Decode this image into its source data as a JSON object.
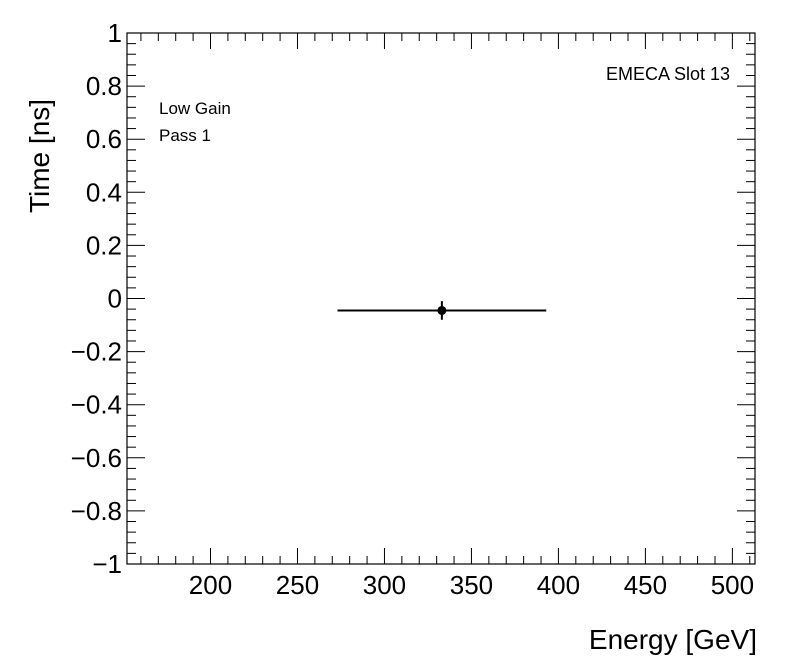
{
  "chart_data": {
    "type": "scatter",
    "xlabel": "Energy [GeV]",
    "ylabel": "Time [ns]",
    "xlim": [
      152,
      513
    ],
    "ylim": [
      -1,
      1
    ],
    "x_ticks": [
      200,
      250,
      300,
      350,
      400,
      450,
      500
    ],
    "y_ticks": [
      -1,
      -0.8,
      -0.6,
      -0.4,
      -0.2,
      0,
      0.2,
      0.4,
      0.6,
      0.8,
      1
    ],
    "x_tick_labels": [
      "200",
      "250",
      "300",
      "350",
      "400",
      "450",
      "500"
    ],
    "y_tick_labels": [
      "−1",
      "−0.8",
      "−0.6",
      "−0.4",
      "−0.2",
      "0",
      "0.2",
      "0.4",
      "0.6",
      "0.8",
      "1"
    ],
    "grid": false,
    "series": [
      {
        "points": [
          {
            "x": 333,
            "y": -0.045,
            "x_err_low": 60,
            "x_err_high": 60,
            "y_err": 0.035
          }
        ]
      }
    ],
    "annotations": {
      "top_left": [
        "Low Gain",
        "Pass 1"
      ],
      "top_right": "EMECA Slot 13"
    }
  }
}
